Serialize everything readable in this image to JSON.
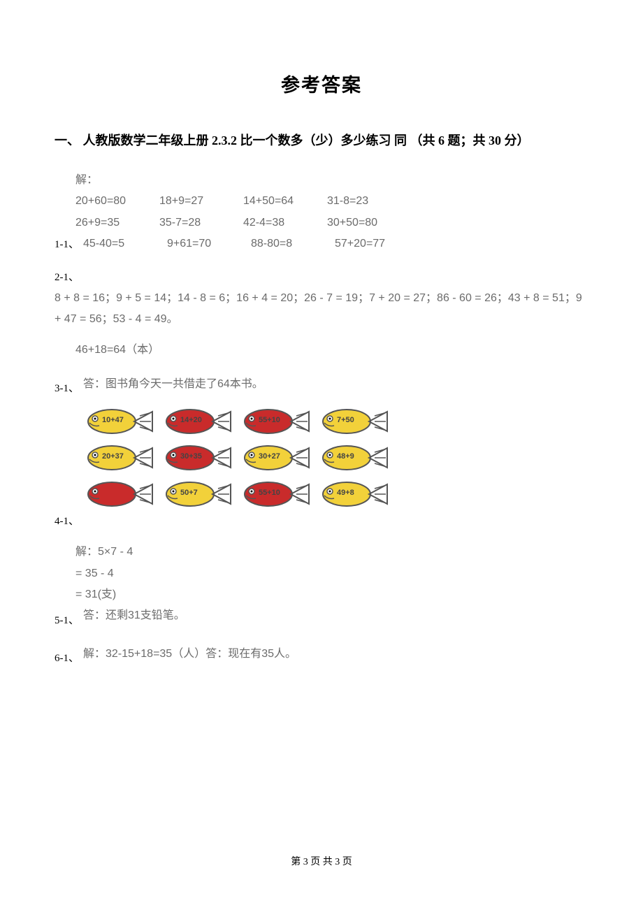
{
  "title": "参考答案",
  "section_heading": "一、 人教版数学二年级上册 2.3.2 比一个数多（少）多少练习  同 （共 6 题；共 30 分）",
  "q1": {
    "label": "1-1、",
    "header": "解：",
    "rows": [
      [
        "20+60=80",
        "18+9=27",
        "14+50=64",
        "31-8=23"
      ],
      [
        "26+9=35",
        "35-7=28",
        "42-4=38",
        "30+50=80"
      ],
      [
        "45-40=5",
        "9+61=70",
        "88-80=8",
        "57+20=77"
      ]
    ]
  },
  "q2": {
    "label": "2-1、",
    "text": "8 + 8 = 16；9 + 5 = 14；14 - 8 = 6；16 + 4 = 20；26 - 7 = 19；7 + 20 = 27；86 - 60 = 26；43 + 8 = 51；9 + 47 = 56；53 - 4 = 49。"
  },
  "q3": {
    "label": "3-1、",
    "line1": "46+18=64（本）",
    "line2": "答：图书角今天一共借走了64本书。"
  },
  "q4": {
    "label": "4-1、",
    "fish_colors": {
      "yellow": "#f2d13a",
      "red": "#c92b2b",
      "stroke": "#555555"
    },
    "rows": [
      [
        {
          "color": "yellow",
          "text": "10+47"
        },
        {
          "color": "red",
          "text": "14+20"
        },
        {
          "color": "red",
          "text": "55+10"
        },
        {
          "color": "yellow",
          "text": "7+50"
        }
      ],
      [
        {
          "color": "yellow",
          "text": "20+37"
        },
        {
          "color": "red",
          "text": "30+35"
        },
        {
          "color": "yellow",
          "text": "30+27"
        },
        {
          "color": "yellow",
          "text": "48+9"
        }
      ],
      [
        {
          "color": "red",
          "text": " "
        },
        {
          "color": "yellow",
          "text": "50+7"
        },
        {
          "color": "red",
          "text": "55+10"
        },
        {
          "color": "yellow",
          "text": "49+8"
        }
      ]
    ]
  },
  "q5": {
    "label": "5-1、",
    "lines": [
      "解：5×7 - 4",
      "= 35 - 4",
      "= 31(支)",
      "答：还剩31支铅笔。"
    ]
  },
  "q6": {
    "label": "6-1、",
    "text": "解：32-15+18=35（人）答：现在有35人。"
  },
  "footer": "第 3 页 共 3 页"
}
